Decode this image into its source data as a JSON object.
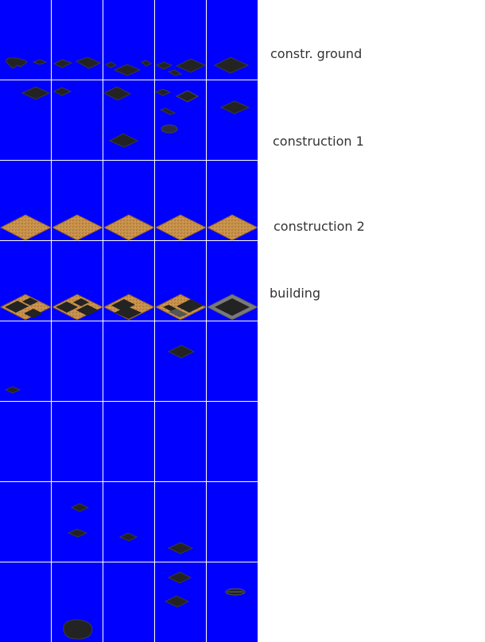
{
  "sheet": {
    "background": "#0000ff",
    "grid_color": "#ffffff",
    "columns": 5,
    "rows": 8
  },
  "labels": {
    "row1": "constr. ground",
    "row2": "construction 1",
    "row3": "construction 2",
    "row4": "building"
  },
  "colors": {
    "dark_tile": "#232323",
    "tile_outline": "#3a3a3a",
    "sand": "#c8914a",
    "sand_dark": "#a8733a",
    "gray_frame": "#7a7a7a"
  }
}
